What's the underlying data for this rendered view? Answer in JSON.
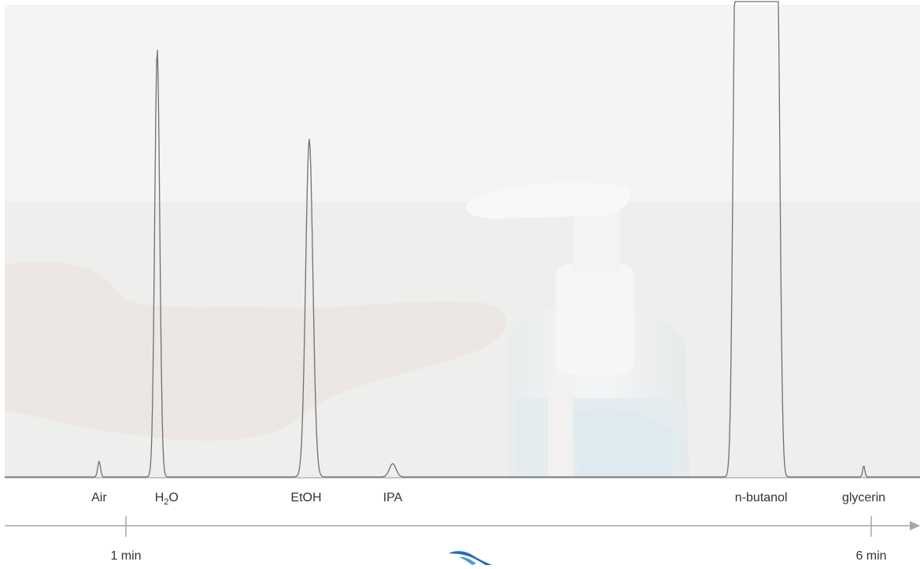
{
  "chart_data": {
    "type": "line",
    "title": "",
    "xlabel": "",
    "ylabel": "",
    "x_axis_ticks": [
      {
        "t": 1,
        "label": "1 min"
      },
      {
        "t": 6,
        "label": "6 min"
      }
    ],
    "peaks": [
      {
        "name": "Air",
        "label_main": "Air",
        "label_sub": "",
        "label_tail": "",
        "t": 0.82,
        "height": 0.033
      },
      {
        "name": "H2O",
        "label_main": "H",
        "label_sub": "2",
        "label_tail": "O",
        "t": 1.21,
        "height": 0.906
      },
      {
        "name": "EtOH",
        "label_main": "EtOH",
        "label_sub": "",
        "label_tail": "",
        "t": 2.23,
        "height": 0.715
      },
      {
        "name": "IPA",
        "label_main": "IPA",
        "label_sub": "",
        "label_tail": "",
        "t": 2.79,
        "height": 0.028
      },
      {
        "name": "n-butanol",
        "label_main": "n-butanol",
        "label_sub": "",
        "label_tail": "",
        "t": 5.23,
        "height": 1.0,
        "offscale": true
      },
      {
        "name": "glycerin",
        "label_main": "glycerin",
        "label_sub": "",
        "label_tail": "",
        "t": 5.95,
        "height": 0.024
      }
    ],
    "colors": {
      "trace": "#707070",
      "axis": "#a6a6a6",
      "text": "#333333",
      "logo": "#1d6fb8"
    }
  }
}
